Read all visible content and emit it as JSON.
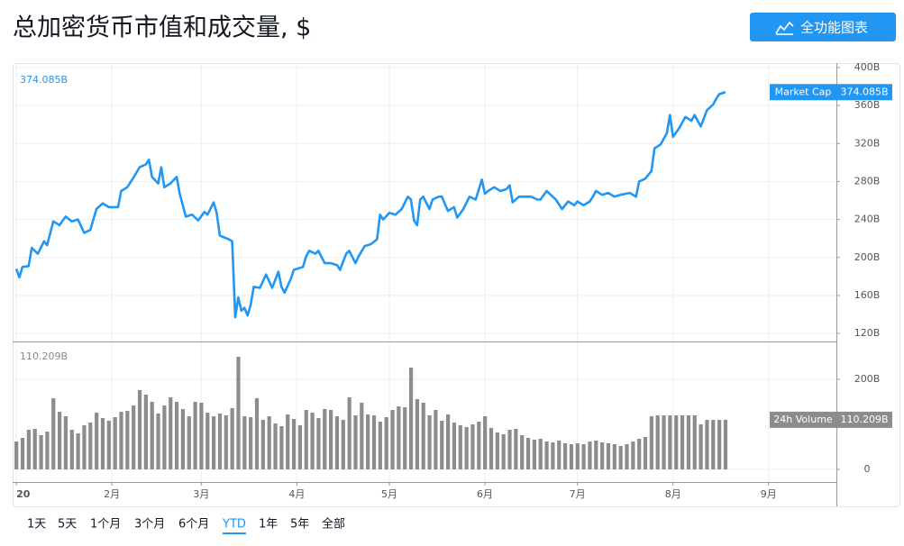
{
  "header": {
    "title": "总加密货币市值和成交量, $",
    "button": "全功能图表"
  },
  "range_buttons": [
    "1天",
    "5天",
    "1个月",
    "3个月",
    "6个月",
    "YTD",
    "1年",
    "5年",
    "全部"
  ],
  "selected_range": 5,
  "chart_data": [
    {
      "type": "line",
      "name": "Market Cap",
      "color": "#2196f3",
      "last_value_label": "374.085B",
      "xlim": [
        -1.2,
        266
      ],
      "x": [
        0,
        1,
        2,
        4,
        5,
        7,
        9,
        10,
        12,
        14,
        16,
        18,
        20,
        22,
        24,
        26,
        28,
        30,
        33,
        34,
        36,
        38,
        40,
        42,
        43,
        44,
        46,
        47,
        48,
        50,
        52,
        53,
        55,
        57,
        59,
        61,
        62,
        64,
        65,
        66,
        69,
        70,
        71,
        72,
        73,
        74,
        75,
        76,
        77,
        79,
        81,
        83,
        85,
        86,
        87,
        89,
        90,
        93,
        94,
        95,
        97,
        98,
        100,
        102,
        104,
        105,
        107,
        108,
        110,
        111,
        113,
        115,
        117,
        118,
        119,
        121,
        123,
        125,
        127,
        128,
        129,
        130,
        131,
        132,
        134,
        135,
        137,
        138,
        140,
        142,
        143,
        145,
        147,
        149,
        151,
        152,
        153,
        155,
        157,
        159,
        160,
        161,
        163,
        165,
        167,
        169,
        170,
        172,
        174,
        175,
        177,
        179,
        181,
        182,
        184,
        186,
        187,
        188,
        190,
        192,
        194,
        196,
        199,
        201,
        202,
        204,
        206,
        207,
        209,
        211,
        212,
        213,
        215,
        217,
        219,
        220,
        222,
        224,
        226,
        227,
        228,
        230
      ],
      "values": [
        188,
        179,
        190,
        191,
        210,
        204,
        217,
        213,
        238,
        234,
        243,
        238,
        240,
        226,
        229,
        251,
        257,
        253,
        253,
        270,
        274,
        284,
        295,
        298,
        303,
        285,
        278,
        295,
        274,
        278,
        285,
        267,
        243,
        245,
        239,
        248,
        245,
        258,
        247,
        223,
        219,
        217,
        137,
        158,
        144,
        147,
        139,
        150,
        169,
        168,
        182,
        168,
        185,
        169,
        163,
        177,
        187,
        190,
        201,
        207,
        204,
        207,
        194,
        194,
        192,
        187,
        204,
        207,
        194,
        201,
        212,
        214,
        219,
        245,
        240,
        247,
        245,
        251,
        264,
        261,
        239,
        234,
        261,
        264,
        251,
        261,
        264,
        264,
        249,
        253,
        242,
        251,
        264,
        261,
        282,
        267,
        270,
        274,
        270,
        272,
        276,
        258,
        264,
        264,
        264,
        261,
        261,
        270,
        264,
        261,
        251,
        259,
        255,
        259,
        255,
        259,
        264,
        270,
        266,
        268,
        264,
        266,
        268,
        264,
        280,
        283,
        291,
        315,
        319,
        331,
        350,
        327,
        336,
        348,
        344,
        350,
        338,
        355,
        361,
        367,
        372,
        374.085
      ],
      "ylim": [
        112.5,
        404.7
      ],
      "yticks": [
        {
          "value": 120,
          "label": "120B"
        },
        {
          "value": 160,
          "label": "160B"
        },
        {
          "value": 200,
          "label": "200B"
        },
        {
          "value": 240,
          "label": "240B"
        },
        {
          "value": 280,
          "label": "280B"
        },
        {
          "value": 320,
          "label": "320B"
        },
        {
          "value": 360,
          "label": "360B"
        },
        {
          "value": 400,
          "label": "400B"
        }
      ],
      "grid": true
    },
    {
      "type": "bar",
      "name": "24h Volume",
      "color": "#8c8c8c",
      "last_value_label": "110.209B",
      "xlim": [
        -1.2,
        266
      ],
      "xticks": [
        {
          "value": 0,
          "label": "20"
        },
        {
          "value": 31,
          "label": "2月"
        },
        {
          "value": 60,
          "label": "3月"
        },
        {
          "value": 91,
          "label": "4月"
        },
        {
          "value": 121,
          "label": "5月"
        },
        {
          "value": 152,
          "label": "6月"
        },
        {
          "value": 182,
          "label": "7月"
        },
        {
          "value": 213,
          "label": "8月"
        },
        {
          "value": 244,
          "label": "9月"
        }
      ],
      "x": [
        0,
        2,
        4,
        6,
        8,
        10,
        12,
        14,
        16,
        18,
        20,
        22,
        24,
        26,
        28,
        30,
        32,
        34,
        36,
        38,
        40,
        42,
        44,
        46,
        48,
        50,
        52,
        54,
        56,
        58,
        60,
        62,
        64,
        66,
        68,
        70,
        72,
        74,
        76,
        78,
        80,
        82,
        84,
        86,
        88,
        90,
        92,
        94,
        96,
        98,
        100,
        102,
        104,
        106,
        108,
        110,
        112,
        114,
        116,
        118,
        120,
        122,
        124,
        126,
        128,
        130,
        132,
        134,
        136,
        138,
        140,
        142,
        144,
        146,
        148,
        150,
        152,
        154,
        156,
        158,
        160,
        162,
        164,
        166,
        168,
        170,
        172,
        174,
        176,
        178,
        180,
        182,
        184,
        186,
        188,
        190,
        192,
        194,
        196,
        198,
        200,
        202,
        204,
        206,
        208,
        210,
        212,
        214,
        216,
        218,
        220,
        222,
        224,
        226,
        228,
        230
      ],
      "values": [
        62,
        70,
        88,
        90,
        76,
        84,
        158,
        128,
        118,
        88,
        80,
        98,
        104,
        126,
        114,
        108,
        116,
        128,
        130,
        142,
        176,
        166,
        150,
        124,
        142,
        160,
        150,
        134,
        118,
        150,
        148,
        126,
        118,
        124,
        120,
        136,
        250,
        118,
        116,
        158,
        110,
        118,
        102,
        96,
        122,
        112,
        98,
        132,
        126,
        114,
        134,
        132,
        118,
        110,
        160,
        120,
        148,
        122,
        120,
        106,
        116,
        132,
        140,
        138,
        226,
        156,
        148,
        120,
        132,
        108,
        122,
        104,
        98,
        94,
        100,
        106,
        118,
        92,
        82,
        78,
        88,
        90,
        76,
        70,
        66,
        68,
        62,
        60,
        64,
        58,
        56,
        58,
        56,
        62,
        64,
        60,
        58,
        56,
        52,
        56,
        62,
        68,
        72,
        118,
        120,
        120,
        120,
        120,
        120,
        120,
        120,
        100,
        110,
        110,
        110,
        110.209
      ],
      "ylim": [
        -28,
        282
      ],
      "yticks": [
        0,
        {
          "value": 200,
          "label": "200B"
        }
      ],
      "grid": true
    }
  ]
}
